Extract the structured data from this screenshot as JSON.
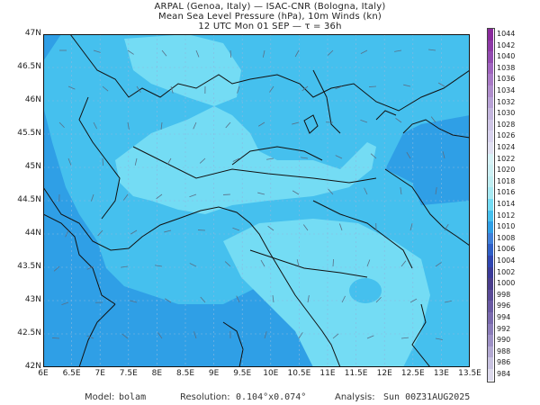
{
  "header": {
    "line1": "ARPAL (Genoa, Italy)  —  ISAC-CNR (Bologna, Italy)",
    "line2": "Mean Sea Level Pressure (hPa), 10m Winds (kn)",
    "line3": "12 UTC Mon 01 SEP  —  τ = 36h"
  },
  "axes": {
    "lat_labels": [
      "47N",
      "46.5N",
      "46N",
      "45.5N",
      "45N",
      "44.5N",
      "44N",
      "43.5N",
      "43N",
      "42.5N",
      "42N"
    ],
    "lon_labels": [
      "6E",
      "6.5E",
      "7E",
      "7.5E",
      "8E",
      "8.5E",
      "9E",
      "9.5E",
      "10E",
      "10.5E",
      "11E",
      "11.5E",
      "12E",
      "12.5E",
      "13E",
      "13.5E"
    ],
    "lat_range": [
      42,
      47
    ],
    "lon_range": [
      6,
      13.5
    ]
  },
  "legend": {
    "levels": [
      "1044",
      "1042",
      "1040",
      "1038",
      "1036",
      "1034",
      "1032",
      "1030",
      "1028",
      "1026",
      "1024",
      "1022",
      "1020",
      "1018",
      "1016",
      "1014",
      "1012",
      "1010",
      "1008",
      "1006",
      "1004",
      "1002",
      "1000",
      "998",
      "996",
      "994",
      "992",
      "990",
      "988",
      "986",
      "984"
    ],
    "colors": [
      "#8a2a9c",
      "#8e3aa6",
      "#934cb0",
      "#a064be",
      "#a97ac6",
      "#b08ecc",
      "#b8a2d6",
      "#c4b6de",
      "#cfc6e6",
      "#d8d2ee",
      "#e0e0f2",
      "#d6f2f6",
      "#ccf0f4",
      "#bfeef2",
      "#a7eaf3",
      "#74dcf4",
      "#45c0ee",
      "#2f9fe6",
      "#3f7fd9",
      "#2f5fc6",
      "#2f45b0",
      "#3a3a98",
      "#4a3d8c",
      "#5a4b97",
      "#6a5aa3",
      "#7a6aae",
      "#8b7cb9",
      "#9e91c6",
      "#b3a9d2",
      "#c8c2e0",
      "#dcd9ec"
    ]
  },
  "footer": {
    "model_label": "Model:",
    "model_value": "bolam",
    "res_label": "Resolution:",
    "res_value": "0.104°x0.074°",
    "analysis_label": "Analysis:",
    "analysis_value": "Sun 00Z31AUG2025"
  },
  "colors": {
    "pressure_1010": "#2f9fe6",
    "pressure_1012": "#45c0ee",
    "pressure_1014": "#74dcf4",
    "coastline": "#111111",
    "grid": "#8ab8e0"
  }
}
